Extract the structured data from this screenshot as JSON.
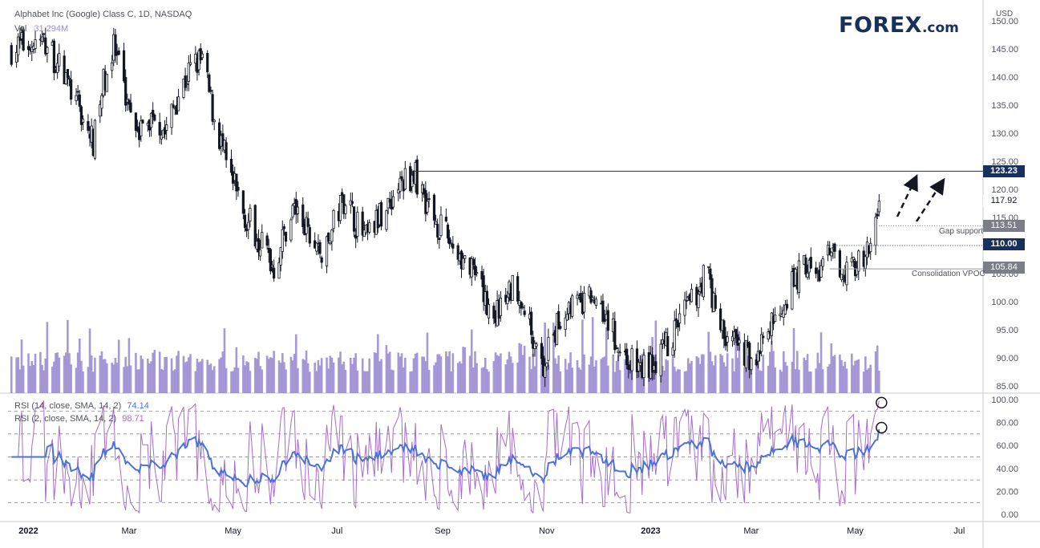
{
  "header": {
    "symbol_line": "Alphabet Inc (Google) Class C, 1D, NASDAQ",
    "vol_label": "Vol",
    "vol_value": "31.294M",
    "rsi1_label": "RSI (14, close, SMA, 14, 2)",
    "rsi1_value": "74.14",
    "rsi2_label": "RSI (2, close, SMA, 14, 2)",
    "rsi2_value": "98.71"
  },
  "logo": {
    "part1": "F",
    "part2": "REX",
    "suffix": ".com"
  },
  "currency": "USD",
  "price_tags": {
    "resistance": "123.23",
    "last": "117.92",
    "gap_high": "113.51",
    "level_110": "110.00",
    "vpoc": "105.84"
  },
  "annotations": {
    "gap_support": "Gap support",
    "consolidation_vpoc": "Consolidation VPOC"
  },
  "colors": {
    "candle": "#131722",
    "volume": "#9c8ed1",
    "rsi14": "#4a72d8",
    "rsi2": "#a66bd0",
    "tag_dark": "#17305c",
    "tag_grey": "#7b7e87",
    "grid_dash": "#50535e"
  },
  "chart_data": {
    "type": "candlestick",
    "title": "Alphabet Inc (Google) Class C, 1D, NASDAQ",
    "ylabel": "USD",
    "price_ylim": [
      82,
      153
    ],
    "price_ticks": [
      85,
      90,
      95,
      100,
      105,
      110,
      115,
      120,
      125,
      130,
      135,
      140,
      145,
      150
    ],
    "rsi_ticks": [
      0,
      20,
      40,
      60,
      80,
      100
    ],
    "x_ticks": [
      "2022",
      "Mar",
      "May",
      "Jul",
      "Sep",
      "Nov",
      "2023",
      "Mar",
      "May",
      "Jul"
    ],
    "x_tick_days": [
      0,
      59,
      120,
      181,
      243,
      304,
      365,
      424,
      485,
      546
    ],
    "price_path": [
      [
        -10,
        145
      ],
      [
        0,
        146
      ],
      [
        10,
        146
      ],
      [
        20,
        141
      ],
      [
        30,
        134
      ],
      [
        38,
        128
      ],
      [
        44,
        139
      ],
      [
        50,
        145
      ],
      [
        56,
        138
      ],
      [
        62,
        133
      ],
      [
        68,
        130
      ],
      [
        74,
        134
      ],
      [
        80,
        130
      ],
      [
        88,
        137
      ],
      [
        96,
        142
      ],
      [
        102,
        143
      ],
      [
        108,
        134
      ],
      [
        114,
        127
      ],
      [
        120,
        121
      ],
      [
        126,
        116
      ],
      [
        132,
        113
      ],
      [
        138,
        110
      ],
      [
        144,
        106
      ],
      [
        150,
        112
      ],
      [
        156,
        117
      ],
      [
        162,
        113
      ],
      [
        168,
        110
      ],
      [
        174,
        108
      ],
      [
        180,
        115
      ],
      [
        186,
        119
      ],
      [
        192,
        114
      ],
      [
        198,
        111
      ],
      [
        204,
        114
      ],
      [
        210,
        117
      ],
      [
        216,
        120
      ],
      [
        222,
        122
      ],
      [
        226,
        123
      ],
      [
        232,
        119
      ],
      [
        238,
        115
      ],
      [
        244,
        112
      ],
      [
        250,
        110
      ],
      [
        256,
        107
      ],
      [
        262,
        104
      ],
      [
        268,
        100
      ],
      [
        274,
        98
      ],
      [
        280,
        100
      ],
      [
        286,
        104
      ],
      [
        292,
        97
      ],
      [
        298,
        93
      ],
      [
        302,
        88
      ],
      [
        306,
        92
      ],
      [
        312,
        97
      ],
      [
        318,
        100
      ],
      [
        324,
        99
      ],
      [
        330,
        101
      ],
      [
        336,
        100
      ],
      [
        342,
        95
      ],
      [
        348,
        91
      ],
      [
        354,
        89
      ],
      [
        360,
        88
      ],
      [
        366,
        89
      ],
      [
        372,
        91
      ],
      [
        378,
        94
      ],
      [
        384,
        98
      ],
      [
        390,
        100
      ],
      [
        394,
        103
      ],
      [
        398,
        106
      ],
      [
        402,
        100
      ],
      [
        408,
        94
      ],
      [
        414,
        93
      ],
      [
        420,
        91
      ],
      [
        426,
        90
      ],
      [
        432,
        93
      ],
      [
        438,
        97
      ],
      [
        444,
        101
      ],
      [
        450,
        104
      ],
      [
        456,
        107
      ],
      [
        462,
        104
      ],
      [
        468,
        108
      ],
      [
        474,
        107
      ],
      [
        480,
        106
      ],
      [
        486,
        107
      ],
      [
        490,
        106
      ],
      [
        494,
        110
      ],
      [
        496,
        113.5
      ],
      [
        499,
        117.9
      ]
    ],
    "volume_ylim": [
      0,
      25
    ],
    "volume_note": "volume in millions",
    "volume_max_marks": [
      [
        90,
        24
      ],
      [
        160,
        12
      ],
      [
        300,
        13
      ],
      [
        396,
        11
      ],
      [
        498,
        13.5
      ]
    ],
    "rsi14_last": 74.14,
    "rsi2_last": 98.71,
    "rsi_levels": [
      10,
      30,
      50,
      70,
      90
    ],
    "levels": [
      {
        "name": "resistance",
        "price": 123.23,
        "label": "123.23"
      },
      {
        "name": "gap_high",
        "price": 113.51,
        "label": "113.51"
      },
      {
        "name": "level_110",
        "price": 110.0,
        "label": "110.00"
      },
      {
        "name": "vpoc",
        "price": 105.84,
        "label": "105.84"
      }
    ]
  }
}
